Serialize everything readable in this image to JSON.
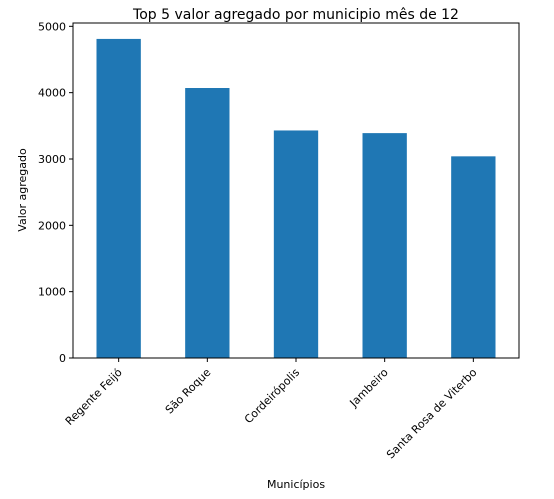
{
  "chart_data": {
    "type": "bar",
    "title": "Top 5 valor agregado por municipio mês de 12",
    "xlabel": "Municípios",
    "ylabel": "Valor agregado",
    "categories": [
      "Regente Feijó",
      "São Roque",
      "Cordeirópolis",
      "Jambeiro",
      "Santa Rosa de Viterbo"
    ],
    "values": [
      4810,
      4070,
      3430,
      3390,
      3040
    ],
    "ylim": [
      0,
      5050
    ],
    "yticks": [
      0,
      1000,
      2000,
      3000,
      4000,
      5000
    ],
    "bar_color": "#1f77b4",
    "grid": false,
    "legend": "none"
  }
}
